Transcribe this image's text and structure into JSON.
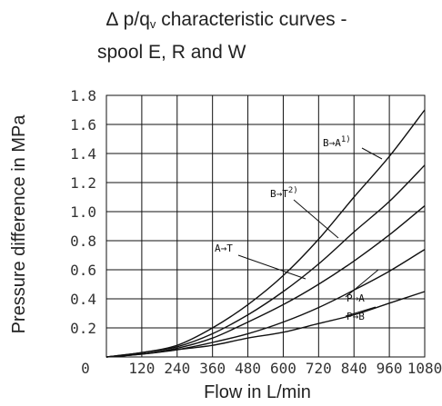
{
  "title": {
    "line1_prefix": "∆ p/q",
    "line1_sub": "v",
    "line1_suffix": " characteristic curves -",
    "line2": "spool E, R and W"
  },
  "chart_data": {
    "type": "line",
    "xlabel": "Flow in L/min",
    "ylabel": "Pressure difference in MPa",
    "xlim": [
      0,
      1080
    ],
    "ylim": [
      0,
      1.8
    ],
    "x_ticks": [
      0,
      120,
      240,
      360,
      480,
      600,
      720,
      840,
      960,
      1080
    ],
    "x_tick_labels": [
      "0",
      "120",
      "240",
      "360",
      "480",
      "600",
      "720",
      "840",
      "960",
      "1080"
    ],
    "y_ticks": [
      0.2,
      0.4,
      0.6,
      0.8,
      1.0,
      1.2,
      1.4,
      1.6,
      1.8
    ],
    "y_tick_labels": [
      "0.2",
      "0.4",
      "0.6",
      "0.8",
      "1.0",
      "1.2",
      "1.4",
      "1.6",
      "1.8"
    ],
    "grid": true,
    "series": [
      {
        "name": "B→A 1)",
        "label_main": "B→A",
        "label_sup": "1)",
        "x": [
          0,
          120,
          240,
          360,
          480,
          600,
          720,
          840,
          960,
          1080
        ],
        "y": [
          0,
          0.03,
          0.08,
          0.2,
          0.36,
          0.56,
          0.81,
          1.1,
          1.38,
          1.7
        ]
      },
      {
        "name": "B→T 2)",
        "label_main": "B→T",
        "label_sup": "2)",
        "x": [
          0,
          120,
          240,
          360,
          480,
          600,
          720,
          840,
          960,
          1080
        ],
        "y": [
          0,
          0.03,
          0.07,
          0.16,
          0.29,
          0.45,
          0.64,
          0.86,
          1.07,
          1.32
        ]
      },
      {
        "name": "A→T",
        "label_main": "A→T",
        "label_sup": "",
        "x": [
          0,
          120,
          240,
          360,
          480,
          600,
          720,
          840,
          960,
          1080
        ],
        "y": [
          0,
          0.02,
          0.06,
          0.13,
          0.24,
          0.36,
          0.5,
          0.66,
          0.84,
          1.04
        ]
      },
      {
        "name": "P→A",
        "label_main": "P→A",
        "label_sup": "",
        "x": [
          0,
          120,
          240,
          360,
          480,
          600,
          720,
          840,
          960,
          1080
        ],
        "y": [
          0,
          0.02,
          0.05,
          0.1,
          0.16,
          0.24,
          0.34,
          0.46,
          0.59,
          0.74
        ]
      },
      {
        "name": "P→B",
        "label_main": "P→B",
        "label_sup": "",
        "x": [
          0,
          120,
          240,
          360,
          480,
          600,
          720,
          840,
          960,
          1080
        ],
        "y": [
          0,
          0.02,
          0.05,
          0.08,
          0.13,
          0.17,
          0.23,
          0.29,
          0.37,
          0.45
        ]
      }
    ]
  }
}
